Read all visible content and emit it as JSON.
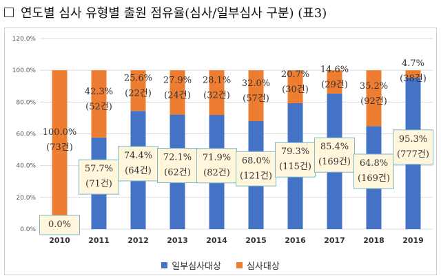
{
  "heading": {
    "box_glyph": "□",
    "title": "연도별 심사 유형별 출원 점유율(심사/일부심사 구분) (표3)"
  },
  "colors": {
    "blue": "#4472C4",
    "orange": "#ED7D31",
    "label_box_fill": "#FFF6DC",
    "label_box_border": "#7BB8C9"
  },
  "chart_data": {
    "type": "bar",
    "stacked": true,
    "percent_axis": true,
    "categories": [
      "2010",
      "2011",
      "2012",
      "2013",
      "2014",
      "2015",
      "2016",
      "2017",
      "2018",
      "2019"
    ],
    "ylim": [
      0,
      120
    ],
    "yticks": [
      "0.0%",
      "20.0%",
      "40.0%",
      "60.0%",
      "80.0%",
      "100.0%",
      "120.0%"
    ],
    "grid": true,
    "legend": "bottom",
    "series": [
      {
        "name": "일부심사대상",
        "color": "#4472C4",
        "values": [
          0.0,
          57.7,
          74.4,
          72.1,
          71.9,
          68.0,
          79.3,
          85.4,
          64.8,
          95.3
        ],
        "labels": [
          [
            "0.0%",
            ""
          ],
          [
            "57.7%",
            "(71건)"
          ],
          [
            "74.4%",
            "(64건)"
          ],
          [
            "72.1%",
            "(62건)"
          ],
          [
            "71.9%",
            "(82건)"
          ],
          [
            "68.0%",
            "(121건)"
          ],
          [
            "79.3%",
            "(115건)"
          ],
          [
            "85.4%",
            "(169건)"
          ],
          [
            "64.8%",
            "(169건)"
          ],
          [
            "95.3%",
            "(777건)"
          ]
        ]
      },
      {
        "name": "심사대상",
        "color": "#ED7D31",
        "values": [
          100.0,
          42.3,
          25.6,
          27.9,
          28.1,
          32.0,
          20.7,
          14.6,
          35.2,
          4.7
        ],
        "labels": [
          [
            "100.0%",
            "(73건)"
          ],
          [
            "42.3%",
            "(52건)"
          ],
          [
            "25.6%",
            "(22건)"
          ],
          [
            "27.9%",
            "(24건)"
          ],
          [
            "28.1%",
            "(32건)"
          ],
          [
            "32.0%",
            "(57건)"
          ],
          [
            "20.7%",
            "(30건)"
          ],
          [
            "14.6%",
            "(29건)"
          ],
          [
            "35.2%",
            "(92건)"
          ],
          [
            "4.7%",
            "(38건)"
          ]
        ]
      }
    ]
  }
}
